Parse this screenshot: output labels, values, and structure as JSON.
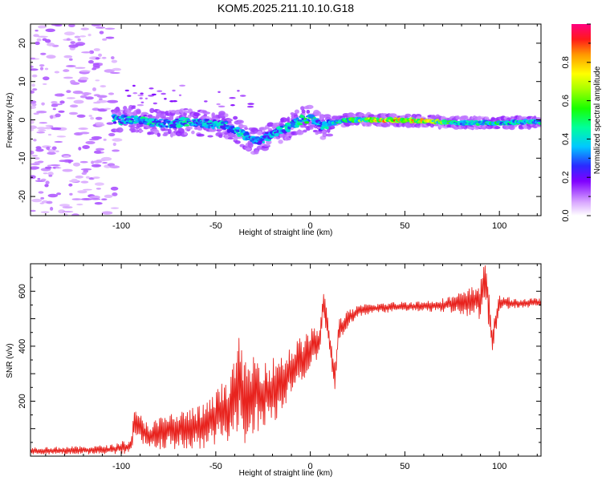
{
  "figure": {
    "title": "KOM5.2025.211.10.10.G18"
  },
  "chart_data": [
    {
      "type": "heatmap",
      "xlabel": "Height of straight line (km)",
      "ylabel": "Frequency (Hz)",
      "xlim": [
        -148,
        122
      ],
      "ylim": [
        -25,
        25
      ],
      "xticks": [
        -100,
        -50,
        0,
        50,
        100
      ],
      "yticks": [
        -20,
        -10,
        0,
        10,
        20
      ],
      "colorbar": {
        "label": "Normalized spectral amplitude",
        "range": [
          0,
          1
        ],
        "ticks": [
          0.0,
          0.2,
          0.4,
          0.6,
          0.8
        ]
      },
      "ridge": {
        "description_points_x": [
          -102,
          -95,
          -85,
          -75,
          -65,
          -55,
          -45,
          -40,
          -35,
          -30,
          -25,
          -20,
          -15,
          -10,
          -5,
          0,
          3,
          6,
          10,
          20,
          40,
          60,
          80,
          100,
          122
        ],
        "frequency_hz": [
          0,
          0,
          -0.5,
          -1,
          -0.5,
          -1,
          -1.5,
          -2.5,
          -4,
          -5.5,
          -5,
          -3.5,
          -2.5,
          -1.5,
          0,
          0.5,
          -0.5,
          -2,
          -1,
          0,
          0,
          -0.3,
          -0.8,
          -0.8,
          -0.5
        ],
        "peak_amplitude": [
          0.45,
          0.5,
          0.5,
          0.45,
          0.5,
          0.45,
          0.45,
          0.5,
          0.5,
          0.45,
          0.4,
          0.45,
          0.45,
          0.5,
          0.5,
          0.6,
          0.45,
          0.45,
          0.5,
          0.65,
          0.95,
          0.85,
          0.5,
          0.55,
          0.5
        ]
      },
      "noise_region_x": [
        -148,
        -102
      ]
    },
    {
      "type": "line",
      "xlabel": "Height of straight line (km)",
      "ylabel": "SNR (v/v)",
      "xlim": [
        -148,
        122
      ],
      "ylim": [
        0,
        700
      ],
      "xticks": [
        -100,
        -50,
        0,
        50,
        100
      ],
      "yticks": [
        200,
        400,
        600
      ],
      "series": [
        {
          "color": "#e8231e",
          "x": [
            -148,
            -130,
            -115,
            -105,
            -95,
            -93,
            -85,
            -75,
            -65,
            -55,
            -50,
            -45,
            -40,
            -37,
            -35,
            -30,
            -25,
            -20,
            -15,
            -10,
            -5,
            0,
            5,
            7,
            10,
            13,
            15,
            20,
            25,
            30,
            40,
            50,
            60,
            70,
            80,
            85,
            90,
            93,
            96,
            100,
            110,
            122
          ],
          "y": [
            20,
            20,
            22,
            25,
            35,
            120,
            70,
            90,
            100,
            110,
            140,
            170,
            200,
            300,
            180,
            230,
            230,
            240,
            270,
            310,
            350,
            390,
            420,
            560,
            430,
            280,
            460,
            500,
            525,
            535,
            540,
            545,
            545,
            550,
            555,
            560,
            570,
            640,
            420,
            560,
            555,
            560
          ],
          "amplitude": [
            10,
            12,
            12,
            14,
            25,
            40,
            45,
            55,
            60,
            70,
            80,
            95,
            120,
            140,
            130,
            120,
            110,
            100,
            90,
            80,
            70,
            60,
            50,
            40,
            40,
            40,
            35,
            25,
            18,
            16,
            15,
            15,
            16,
            20,
            35,
            45,
            60,
            70,
            55,
            20,
            14,
            12
          ]
        }
      ]
    }
  ]
}
